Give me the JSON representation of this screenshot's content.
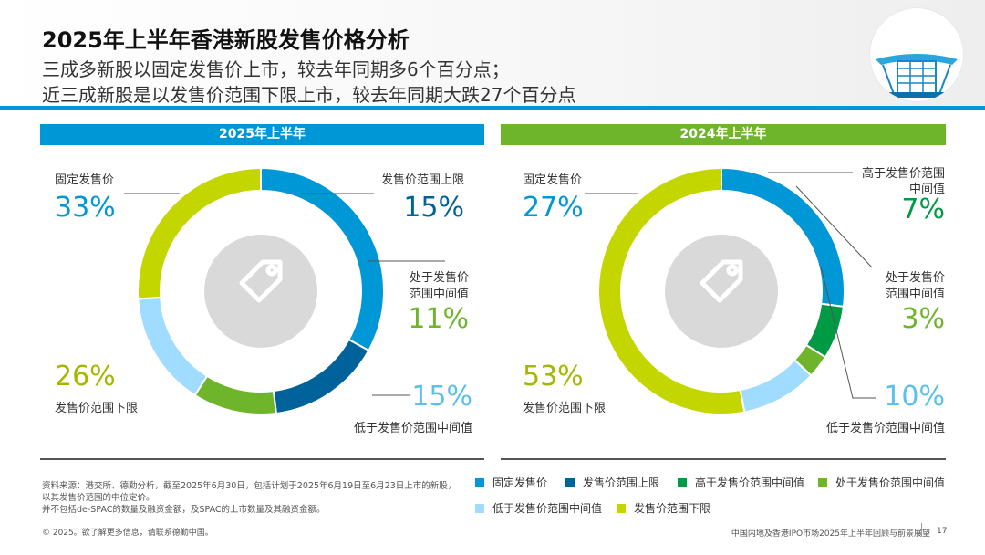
{
  "title": "2025年上半年香港新股发售价格分析",
  "subtitle_lines": [
    "三成多新股以固定发售价上市，较去年同期多6个百分点；",
    "近三成新股是以发售价范围下限上市，较去年同期大跌27个百分点"
  ],
  "colors": {
    "fixed": "#0097d7",
    "upper": "#00629b",
    "above_mid": "#009a44",
    "mid": "#6fb52c",
    "below_mid": "#a0dcff",
    "lower": "#c4d600",
    "center_circle": "#d9d9d9",
    "header_rule": "#0097d7"
  },
  "chart_data": [
    {
      "type": "pie",
      "title": "2025年上半年",
      "categories": [
        "固定发售价",
        "发售价范围上限",
        "处于发售价范围中间值",
        "低于发售价范围中间值",
        "发售价范围下限"
      ],
      "values": [
        33,
        15,
        11,
        15,
        26
      ],
      "value_labels": [
        "33%",
        "15%",
        "11%",
        "15%",
        "26%"
      ],
      "slice_labels": [
        "固定发售价",
        "发售价范围上限",
        "处于发售价\n范围中间值",
        "低于发售价范围中间值",
        "发售价范围下限"
      ],
      "color_keys": [
        "fixed",
        "upper",
        "mid",
        "below_mid",
        "lower"
      ]
    },
    {
      "type": "pie",
      "title": "2024年上半年",
      "categories": [
        "固定发售价",
        "高于发售价范围中间值",
        "处于发售价范围中间值",
        "低于发售价范围中间值",
        "发售价范围下限"
      ],
      "values": [
        27,
        7,
        3,
        10,
        53
      ],
      "value_labels": [
        "27%",
        "7%",
        "3%",
        "10%",
        "53%"
      ],
      "slice_labels": [
        "固定发售价",
        "高于发售价范围\n中间值",
        "处于发售价\n范围中间值",
        "低于发售价范围中间值",
        "发售价范围下限"
      ],
      "color_keys": [
        "fixed",
        "above_mid",
        "mid",
        "below_mid",
        "lower"
      ]
    }
  ],
  "legend": [
    {
      "label": "固定发售价",
      "color_key": "fixed"
    },
    {
      "label": "发售价范围上限",
      "color_key": "upper"
    },
    {
      "label": "高于发售价范围中间值",
      "color_key": "above_mid"
    },
    {
      "label": "处于发售价范围中间值",
      "color_key": "mid"
    },
    {
      "label": "低于发售价范围中间值",
      "color_key": "below_mid"
    },
    {
      "label": "发售价范围下限",
      "color_key": "lower"
    }
  ],
  "source_lines": [
    "资料来源：港交所、德勤分析，截至2025年6月30日，包括计划于2025年6月19日至6月23日上市的新股，",
    "以其发售价范围的中位定价。",
    "并不包括de-SPAC的数量及融资金额，及SPAC的上市数量及其融资金额。"
  ],
  "copyright": "© 2025。欲了解更多信息，请联系德勤中国。",
  "footer_text": "中国内地及香港IPO市场2025年上半年回顾与前景展望",
  "page_number": "17"
}
